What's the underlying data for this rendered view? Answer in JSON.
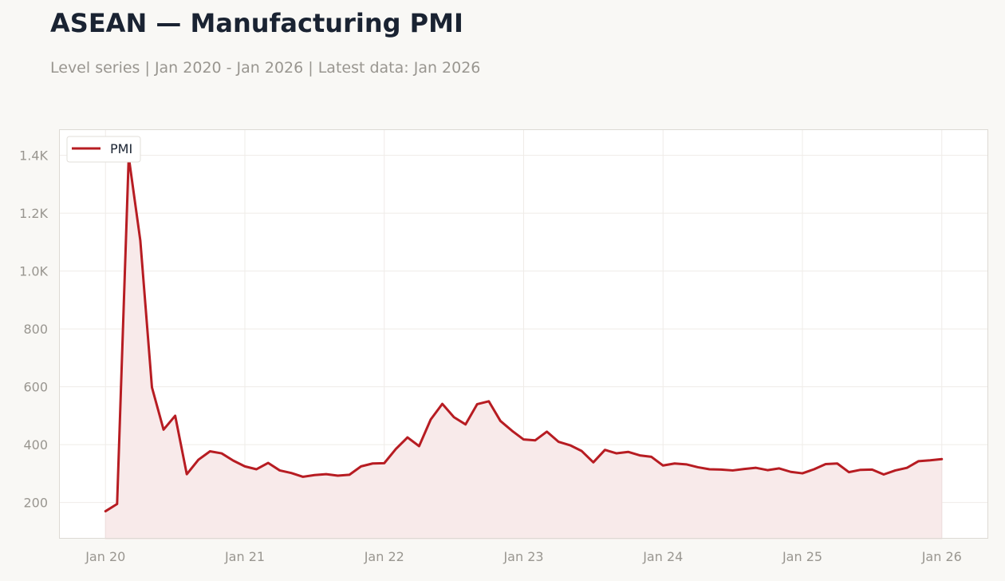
{
  "header": {
    "title": "ASEAN — Manufacturing PMI",
    "subtitle": "Level series | Jan 2020 - Jan 2026 | Latest data: Jan 2026"
  },
  "colors": {
    "line": "#b71c22",
    "fill": "#f8eaea",
    "grid": "#efece8",
    "frame": "#dddad4",
    "plot_bg": "#ffffff",
    "page_bg": "#f9f8f5"
  },
  "chart_data": {
    "type": "area",
    "title": "ASEAN — Manufacturing PMI",
    "subtitle": "Level series | Jan 2020 - Jan 2026 | Latest data: Jan 2026",
    "xlabel": "",
    "ylabel": "",
    "legend_position": "top-left",
    "grid": true,
    "ylim": [
      75,
      1490
    ],
    "xlim": [
      "2019-09",
      "2026-05"
    ],
    "y_ticks": [
      {
        "value": 200,
        "label": "200"
      },
      {
        "value": 400,
        "label": "400"
      },
      {
        "value": 600,
        "label": "600"
      },
      {
        "value": 800,
        "label": "800"
      },
      {
        "value": 1000,
        "label": "1.0K"
      },
      {
        "value": 1200,
        "label": "1.2K"
      },
      {
        "value": 1400,
        "label": "1.4K"
      }
    ],
    "x_ticks": [
      {
        "value": "2020-01",
        "label": "Jan 20"
      },
      {
        "value": "2021-01",
        "label": "Jan 21"
      },
      {
        "value": "2022-01",
        "label": "Jan 22"
      },
      {
        "value": "2023-01",
        "label": "Jan 23"
      },
      {
        "value": "2024-01",
        "label": "Jan 24"
      },
      {
        "value": "2025-01",
        "label": "Jan 25"
      },
      {
        "value": "2026-01",
        "label": "Jan 26"
      }
    ],
    "series": [
      {
        "name": "PMI",
        "x": [
          "2020-01",
          "2020-02",
          "2020-03",
          "2020-04",
          "2020-05",
          "2020-06",
          "2020-07",
          "2020-08",
          "2020-09",
          "2020-10",
          "2020-11",
          "2020-12",
          "2021-01",
          "2021-02",
          "2021-03",
          "2021-04",
          "2021-05",
          "2021-06",
          "2021-07",
          "2021-08",
          "2021-09",
          "2021-10",
          "2021-11",
          "2021-12",
          "2022-01",
          "2022-02",
          "2022-03",
          "2022-04",
          "2022-05",
          "2022-06",
          "2022-07",
          "2022-08",
          "2022-09",
          "2022-10",
          "2022-11",
          "2022-12",
          "2023-01",
          "2023-02",
          "2023-03",
          "2023-04",
          "2023-05",
          "2023-06",
          "2023-07",
          "2023-08",
          "2023-09",
          "2023-10",
          "2023-11",
          "2023-12",
          "2024-01",
          "2024-02",
          "2024-03",
          "2024-04",
          "2024-05",
          "2024-06",
          "2024-07",
          "2024-08",
          "2024-09",
          "2024-10",
          "2024-11",
          "2024-12",
          "2025-01",
          "2025-02",
          "2025-03",
          "2025-04",
          "2025-05",
          "2025-06",
          "2025-07",
          "2025-08",
          "2025-09",
          "2025-10",
          "2025-11",
          "2025-12",
          "2026-01"
        ],
        "values": [
          170,
          195,
          1395,
          1105,
          598,
          452,
          500,
          298,
          348,
          377,
          370,
          345,
          325,
          315,
          337,
          311,
          302,
          289,
          295,
          298,
          293,
          296,
          325,
          335,
          336,
          385,
          425,
          395,
          487,
          541,
          495,
          470,
          540,
          550,
          482,
          448,
          418,
          415,
          445,
          410,
          398,
          378,
          339,
          382,
          370,
          375,
          363,
          358,
          328,
          335,
          332,
          322,
          315,
          314,
          311,
          316,
          320,
          312,
          318,
          306,
          301,
          315,
          333,
          335,
          305,
          313,
          314,
          297,
          311,
          320,
          343,
          346,
          350
        ]
      }
    ]
  }
}
